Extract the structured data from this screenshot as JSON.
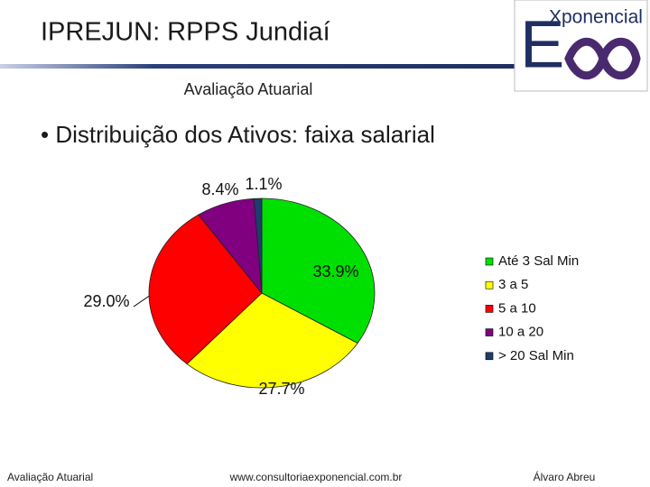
{
  "header": {
    "title": "IPREJUN: RPPS Jundiaí",
    "subtitle": "Avaliação Atuarial"
  },
  "logo": {
    "letter": "E",
    "text": "Xponencial"
  },
  "bullet": "• Distribuição dos Ativos: faixa salarial",
  "chart_data": {
    "type": "pie",
    "categories": [
      "Até 3 Sal Min",
      "3 a 5",
      "5 a 10",
      "10 a 20",
      "> 20 Sal Min"
    ],
    "values": [
      33.9,
      27.7,
      29.0,
      8.4,
      1.1
    ],
    "value_labels": [
      "33.9%",
      "27.7%",
      "29.0%",
      "8.4%",
      "1.1%"
    ],
    "colors": [
      "#00e000",
      "#ffff00",
      "#ff0000",
      "#800080",
      "#1f3c6e"
    ],
    "legend": "right"
  },
  "footer": {
    "left": "Avaliação Atuarial",
    "center": "www.consultoriaexponencial.com.br",
    "right": "Álvaro Abreu"
  }
}
